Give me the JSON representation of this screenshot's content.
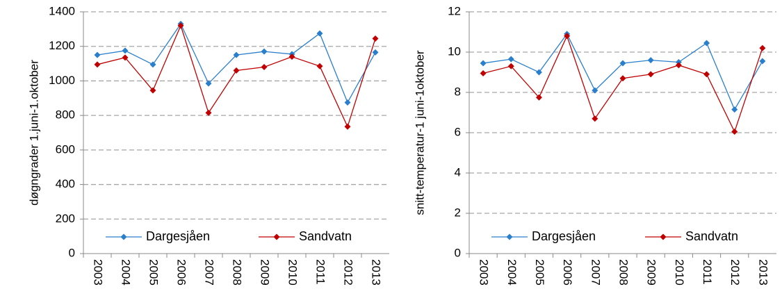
{
  "chart_data": [
    {
      "type": "line",
      "y_label": "døgngrader 1.juni-1.oktober",
      "categories": [
        "2003",
        "2004",
        "2005",
        "2006",
        "2007",
        "2008",
        "2009",
        "2010",
        "2011",
        "2012",
        "2013"
      ],
      "series": [
        {
          "name": "Dargesjåen",
          "color": "#2a7fcc",
          "values": [
            1150,
            1175,
            1095,
            1330,
            985,
            1150,
            1170,
            1155,
            1275,
            875,
            1165
          ]
        },
        {
          "name": "Sandvatn",
          "color": "#c00000",
          "values": [
            1095,
            1135,
            945,
            1320,
            815,
            1060,
            1080,
            1140,
            1085,
            735,
            1245
          ]
        }
      ],
      "ylim": [
        0,
        1400
      ],
      "yticks": [
        0,
        200,
        400,
        600,
        800,
        1000,
        1200,
        1400
      ],
      "grid": true,
      "legend": "lower center"
    },
    {
      "type": "line",
      "y_label": "snitt-temperatur-1 juni-1oktober",
      "categories": [
        "2003",
        "2004",
        "2005",
        "2006",
        "2007",
        "2008",
        "2009",
        "2010",
        "2011",
        "2012",
        "2013"
      ],
      "series": [
        {
          "name": "Dargesjåen",
          "color": "#2a7fcc",
          "values": [
            9.45,
            9.65,
            9.0,
            10.9,
            8.1,
            9.45,
            9.6,
            9.5,
            10.45,
            7.15,
            9.55
          ]
        },
        {
          "name": "Sandvatn",
          "color": "#c00000",
          "values": [
            8.95,
            9.3,
            7.75,
            10.8,
            6.7,
            8.7,
            8.9,
            9.35,
            8.9,
            6.05,
            10.2
          ]
        }
      ],
      "ylim": [
        0,
        12
      ],
      "yticks": [
        0,
        2,
        4,
        6,
        8,
        10,
        12
      ],
      "grid": true,
      "legend": "lower center"
    }
  ]
}
